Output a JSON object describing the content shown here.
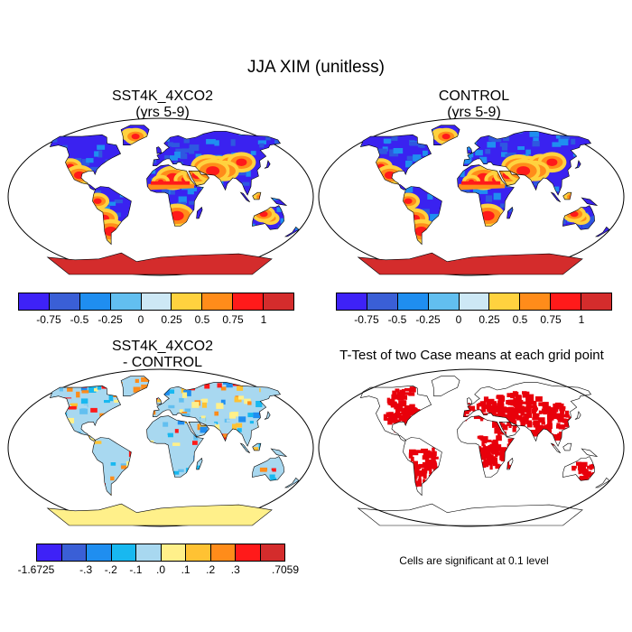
{
  "figure_title": "JJA XIM (unitless)",
  "panels": [
    {
      "title_line1": "SST4K_4XCO2",
      "title_line2": "(yrs 5-9)"
    },
    {
      "title_line1": "CONTROL",
      "title_line2": "(yrs 5-9)"
    },
    {
      "title_line1": "SST4K_4XCO2",
      "title_line2": "- CONTROL"
    },
    {
      "title_line1": "T-Test of two Case means at each grid point",
      "title_line2": ""
    }
  ],
  "colorbar_top": {
    "colors": [
      "#3e22f7",
      "#3a5fd6",
      "#1f8ef0",
      "#62bff0",
      "#cde8f5",
      "#ffd23f",
      "#ff8c1a",
      "#ff1a1a",
      "#d42c2c"
    ],
    "labels": [
      "-0.75",
      "-0.5",
      "-0.25",
      "0",
      "0.25",
      "0.5",
      "0.75",
      "1"
    ]
  },
  "colorbar_diff": {
    "colors": [
      "#3e22f7",
      "#3a5fd6",
      "#1f8ef0",
      "#18b8f0",
      "#a8d8f0",
      "#fff08a",
      "#ffc233",
      "#ff8c1a",
      "#ff1a1a",
      "#d42c2c"
    ],
    "labels": [
      "-1.6725",
      "-.3",
      "-.2",
      "-.1",
      ".0",
      ".1",
      ".2",
      ".3",
      ".7059"
    ]
  },
  "significance_note": "Cells are significant at 0.1 level",
  "colors": {
    "significant": "#e8000b",
    "land_outline": "#000000"
  }
}
